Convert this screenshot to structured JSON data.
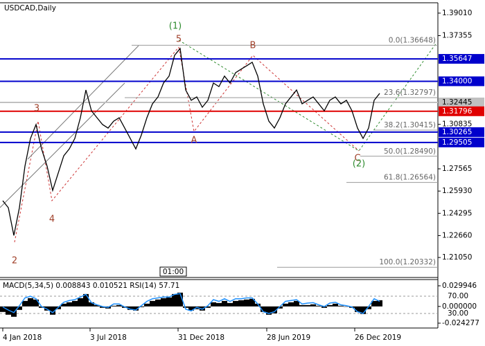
{
  "chart_data": [
    {
      "type": "line",
      "title": "USDCAD,Daily",
      "time_box": "01:00",
      "x": [
        0,
        8,
        16,
        24,
        32,
        40,
        48,
        56,
        64,
        72,
        80,
        88,
        96,
        104,
        112,
        120,
        128,
        136,
        144,
        152,
        160,
        168,
        176,
        184,
        192,
        200,
        208,
        216,
        224,
        232,
        240,
        248,
        256,
        264,
        272,
        280,
        288,
        296,
        304,
        312,
        320,
        328,
        336,
        344,
        352,
        360,
        368,
        376,
        384,
        392,
        400,
        408,
        416,
        424,
        432,
        440,
        448,
        456,
        464,
        472,
        480,
        488,
        496,
        504,
        512,
        520,
        528,
        536,
        544
      ],
      "xlim": [
        -4,
        628
      ],
      "xticks": [
        {
          "value": 0,
          "label": "4 Jan 2018"
        },
        {
          "value": 126,
          "label": "3 Jul 2018"
        },
        {
          "value": 253,
          "label": "31 Dec 2018"
        },
        {
          "value": 381,
          "label": "28 Jun 2019"
        },
        {
          "value": 508,
          "label": "26 Dec 2019"
        }
      ],
      "ylim": [
        1.1963,
        1.3977
      ],
      "yticks": [
        {
          "value": 1.3901,
          "label": "1.39010"
        },
        1.37355,
        1.30835,
        1.27565,
        {
          "value": 1.2593,
          "label": "1.25930"
        },
        1.24295,
        {
          "value": 1.2266,
          "label": "1.22660"
        },
        {
          "value": 1.2105,
          "label": "1.21050"
        }
      ],
      "series": [
        {
          "color": "#000000",
          "values": [
            1.2522,
            1.2471,
            1.2267,
            1.2471,
            1.2776,
            1.298,
            1.3082,
            1.2903,
            1.2776,
            1.2598,
            1.2725,
            1.2852,
            1.2903,
            1.298,
            1.3132,
            1.3336,
            1.3183,
            1.3132,
            1.3082,
            1.3056,
            1.3107,
            1.3132,
            1.3056,
            1.298,
            1.2903,
            1.3005,
            1.3132,
            1.3234,
            1.3285,
            1.3387,
            1.3438,
            1.3591,
            1.3641,
            1.3336,
            1.326,
            1.3285,
            1.3209,
            1.326,
            1.3387,
            1.3361,
            1.3438,
            1.3387,
            1.3463,
            1.3489,
            1.3514,
            1.354,
            1.3438,
            1.3234,
            1.3107,
            1.3056,
            1.3132,
            1.3234,
            1.3285,
            1.3336,
            1.3234,
            1.326,
            1.3285,
            1.3234,
            1.3183,
            1.326,
            1.3285,
            1.3234,
            1.326,
            1.3183,
            1.3056,
            1.298,
            1.3056,
            1.326,
            1.3311
          ]
        }
      ],
      "levels": [
        {
          "value": 1.35647,
          "color": "#0000cc"
        },
        {
          "value": 1.34,
          "label": "1.34000",
          "color": "#0000cc"
        },
        {
          "value": 1.32445,
          "color": "#c0c0c0"
        },
        {
          "value": 1.31796,
          "color": "#e00000"
        },
        {
          "value": 1.30265,
          "color": "#0000cc"
        },
        {
          "value": 1.29505,
          "color": "#0000cc"
        }
      ],
      "fib_levels": [
        {
          "text": "0.0(1.36648)",
          "value": 1.36648
        },
        {
          "text": "23.6(1.32797)",
          "value": 1.32797
        },
        {
          "text": "38.2(1.30415)",
          "value": 1.30415
        },
        {
          "text": "50.0(1.28490)",
          "value": 1.2849
        },
        {
          "text": "61.8(1.26564)",
          "value": 1.26564
        },
        {
          "text": "100.0(1.20332)",
          "value": 1.20332
        }
      ],
      "annotations": [
        {
          "text": "(1)",
          "color": "#2e8b2e"
        },
        {
          "text": "5",
          "color": "#a0402a"
        },
        {
          "text": "B",
          "color": "#a0402a"
        },
        {
          "text": "3",
          "color": "#a0402a"
        },
        {
          "text": "A",
          "color": "#a0402a"
        },
        {
          "text": "4",
          "color": "#a0402a"
        },
        {
          "text": "2",
          "color": "#a0402a"
        },
        {
          "text": "C",
          "color": "#a0402a"
        },
        {
          "text": "(2)",
          "color": "#2e8b2e"
        }
      ]
    },
    {
      "type": "macd",
      "title": "MACD(5,34,5) 0.008843 0.010521 RSI(14) 57.71",
      "ylim": [
        -0.0293,
        0.03898
      ],
      "yticks": [
        0.029946,
        {
          "value": 0,
          "label": "0.000000"
        },
        -0.024277
      ],
      "y2lim": [
        -0.4,
        108.4
      ],
      "y2ticks": [
        {
          "value": 70,
          "label": "70.00"
        },
        {
          "value": 30,
          "label": "30.00"
        }
      ],
      "series": [
        {
          "type": "bar",
          "color": "#000000",
          "values": [
            -0.008,
            -0.012,
            -0.015,
            -0.005,
            0.008,
            0.012,
            0.01,
            -0.002,
            -0.006,
            -0.012,
            -0.004,
            0.004,
            0.006,
            0.008,
            0.012,
            0.018,
            0.006,
            0.002,
            -0.002,
            -0.003,
            0.001,
            0.002,
            -0.002,
            -0.005,
            -0.006,
            -0.001,
            0.004,
            0.008,
            0.01,
            0.012,
            0.013,
            0.018,
            0.02,
            -0.002,
            -0.006,
            -0.004,
            -0.006,
            -0.002,
            0.006,
            0.005,
            0.008,
            0.005,
            0.008,
            0.009,
            0.01,
            0.011,
            0.004,
            -0.008,
            -0.012,
            -0.01,
            -0.003,
            0.004,
            0.006,
            0.008,
            0.002,
            0.002,
            0.003,
            0.001,
            -0.002,
            0.002,
            0.004,
            0.001,
            0.0,
            -0.002,
            -0.008,
            -0.011,
            -0.004,
            0.008,
            0.009
          ]
        },
        {
          "type": "line",
          "axis": "y2",
          "color": "#1e90ff",
          "values": [
            45,
            38,
            32,
            48,
            66,
            70,
            64,
            46,
            40,
            32,
            44,
            56,
            60,
            62,
            68,
            74,
            55,
            50,
            46,
            44,
            52,
            52,
            45,
            40,
            38,
            48,
            58,
            64,
            66,
            68,
            68,
            74,
            76,
            40,
            36,
            44,
            40,
            48,
            62,
            58,
            64,
            58,
            64,
            64,
            66,
            66,
            52,
            34,
            30,
            34,
            46,
            58,
            60,
            62,
            52,
            54,
            55,
            50,
            46,
            54,
            56,
            50,
            48,
            45,
            34,
            30,
            46,
            64,
            58
          ]
        }
      ]
    }
  ]
}
